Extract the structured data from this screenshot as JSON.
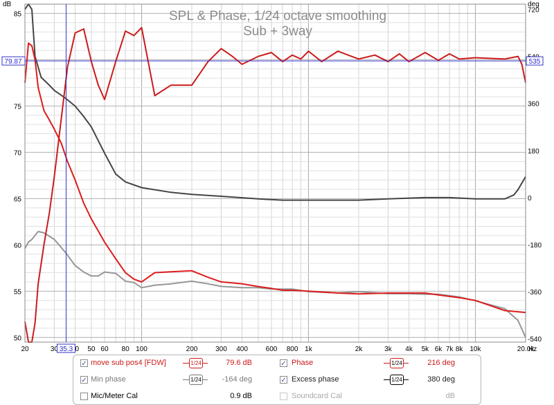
{
  "chart_data": {
    "type": "line",
    "title": "SPL & Phase, 1/24 octave smoothing",
    "subtitle": "Sub + 3way",
    "x_unit": "Hz",
    "xlim": [
      20,
      20000
    ],
    "x_scale": "log",
    "y_left_unit": "dB",
    "ylim_left": [
      49.5,
      86
    ],
    "y_right_unit": "deg",
    "ylim_right": [
      -553,
      740
    ],
    "x_tick_labels": [
      {
        "v": 20,
        "t": "20"
      },
      {
        "v": 30,
        "t": "30"
      },
      {
        "v": 40,
        "t": "40"
      },
      {
        "v": 50,
        "t": "50"
      },
      {
        "v": 60,
        "t": "60"
      },
      {
        "v": 80,
        "t": "80"
      },
      {
        "v": 100,
        "t": "100"
      },
      {
        "v": 200,
        "t": "200"
      },
      {
        "v": 300,
        "t": "300"
      },
      {
        "v": 400,
        "t": "400"
      },
      {
        "v": 600,
        "t": "600"
      },
      {
        "v": 800,
        "t": "800"
      },
      {
        "v": 1000,
        "t": "1k"
      },
      {
        "v": 2000,
        "t": "2k"
      },
      {
        "v": 3000,
        "t": "3k"
      },
      {
        "v": 4000,
        "t": "4k"
      },
      {
        "v": 5000,
        "t": "5k"
      },
      {
        "v": 6000,
        "t": "6k"
      },
      {
        "v": 7000,
        "t": "7k"
      },
      {
        "v": 8000,
        "t": "8k"
      },
      {
        "v": 10000,
        "t": "10k"
      },
      {
        "v": 20000,
        "t": "20.0k"
      }
    ],
    "y_left_ticks": [
      50,
      55,
      60,
      65,
      70,
      75,
      80,
      85
    ],
    "y_right_ticks": [
      -540,
      -360,
      -180,
      0,
      180,
      360,
      540,
      720
    ],
    "cursor": {
      "x": 35.3,
      "x_label": "35.3",
      "y": 79.87,
      "y_label": "79.87",
      "right_label": "535"
    },
    "series": [
      {
        "name": "move sub pos4 [FDW]",
        "axis": "left",
        "color": "#dd1c1c",
        "x": [
          20,
          21,
          22,
          23,
          24,
          26,
          28,
          30,
          33,
          36,
          40,
          45,
          50,
          55,
          60,
          70,
          80,
          90,
          100,
          120,
          150,
          200,
          250,
          300,
          400,
          500,
          600,
          700,
          800,
          1000,
          1500,
          2000,
          3000,
          4000,
          5000,
          6000,
          8000,
          10000,
          15000,
          20000
        ],
        "y": [
          77.5,
          81.8,
          81.5,
          80.0,
          77.0,
          74.5,
          73.5,
          72.5,
          71.0,
          69.0,
          67.0,
          64.5,
          62.8,
          61.5,
          60.3,
          58.5,
          57.0,
          56.3,
          56.0,
          57.0,
          57.1,
          57.2,
          56.5,
          56.0,
          55.8,
          55.5,
          55.3,
          55.1,
          55.1,
          55.0,
          54.8,
          54.7,
          54.8,
          54.8,
          54.8,
          54.6,
          54.3,
          54.0,
          52.9,
          52.7
        ]
      },
      {
        "name": "Phase",
        "axis": "right",
        "color": "#cc1a1a",
        "x": [
          20,
          21,
          22,
          23,
          24,
          26,
          28,
          30,
          33,
          36,
          40,
          45,
          50,
          55,
          60,
          70,
          80,
          90,
          100,
          120,
          150,
          200,
          250,
          300,
          350,
          400,
          500,
          600,
          700,
          800,
          900,
          1000,
          1200,
          1500,
          2000,
          2500,
          3000,
          3500,
          4000,
          5000,
          6000,
          7000,
          8000,
          10000,
          15000,
          18000,
          19000,
          20000
        ],
        "y": [
          -475,
          -560,
          -560,
          -480,
          -330,
          -180,
          -60,
          80,
          300,
          500,
          630,
          645,
          520,
          430,
          375,
          520,
          637,
          620,
          650,
          390,
          430,
          430,
          520,
          570,
          540,
          510,
          540,
          555,
          520,
          545,
          530,
          560,
          520,
          560,
          530,
          545,
          520,
          550,
          520,
          555,
          525,
          550,
          530,
          535,
          530,
          540,
          510,
          440
        ]
      },
      {
        "name": "Min phase",
        "axis": "right",
        "color": "#969696",
        "x": [
          20,
          21,
          22,
          24,
          26,
          30,
          35,
          40,
          45,
          50,
          55,
          60,
          70,
          80,
          90,
          100,
          120,
          150,
          200,
          250,
          300,
          400,
          500,
          600,
          800,
          1000,
          1500,
          2000,
          3000,
          4000,
          5000,
          6000,
          8000,
          10000,
          15000,
          18000,
          20000
        ],
        "y": [
          -195,
          -170,
          -160,
          -130,
          -135,
          -160,
          -210,
          -260,
          -285,
          -300,
          -300,
          -285,
          -290,
          -320,
          -325,
          -345,
          -335,
          -330,
          -320,
          -330,
          -340,
          -345,
          -345,
          -350,
          -350,
          -360,
          -365,
          -360,
          -368,
          -368,
          -370,
          -370,
          -380,
          -395,
          -425,
          -470,
          -535
        ]
      },
      {
        "name": "Excess phase",
        "axis": "right",
        "color": "#444444",
        "x": [
          20,
          21,
          22,
          23,
          25,
          28,
          30,
          35,
          40,
          45,
          50,
          60,
          70,
          80,
          100,
          150,
          200,
          300,
          500,
          700,
          1000,
          2000,
          3000,
          5000,
          7000,
          10000,
          15000,
          17000,
          18000,
          20000
        ],
        "y": [
          720,
          780,
          720,
          540,
          460,
          430,
          410,
          380,
          350,
          310,
          270,
          170,
          90,
          60,
          38,
          20,
          12,
          5,
          -5,
          -10,
          -10,
          -10,
          -5,
          0,
          0,
          -5,
          -5,
          10,
          30,
          80
        ]
      }
    ]
  },
  "legend": {
    "row1": {
      "label": "move sub pos4 [FDW]",
      "checked": "✓",
      "smoothing": "1/24",
      "value": "79.6 dB",
      "label2": "Phase",
      "checked2": "✓",
      "smoothing2": "1/24",
      "value2": "216 deg"
    },
    "row2": {
      "label": "Min phase",
      "checked": "✓",
      "smoothing": "1/24",
      "value": "-164 deg",
      "label2": "Excess phase",
      "checked2": "✓",
      "smoothing2": "1/24",
      "value2": "380 deg"
    },
    "row3": {
      "label": "Mic/Meter Cal",
      "value": "0.9 dB",
      "label2": "Soundcard Cal",
      "value2": "dB"
    }
  }
}
